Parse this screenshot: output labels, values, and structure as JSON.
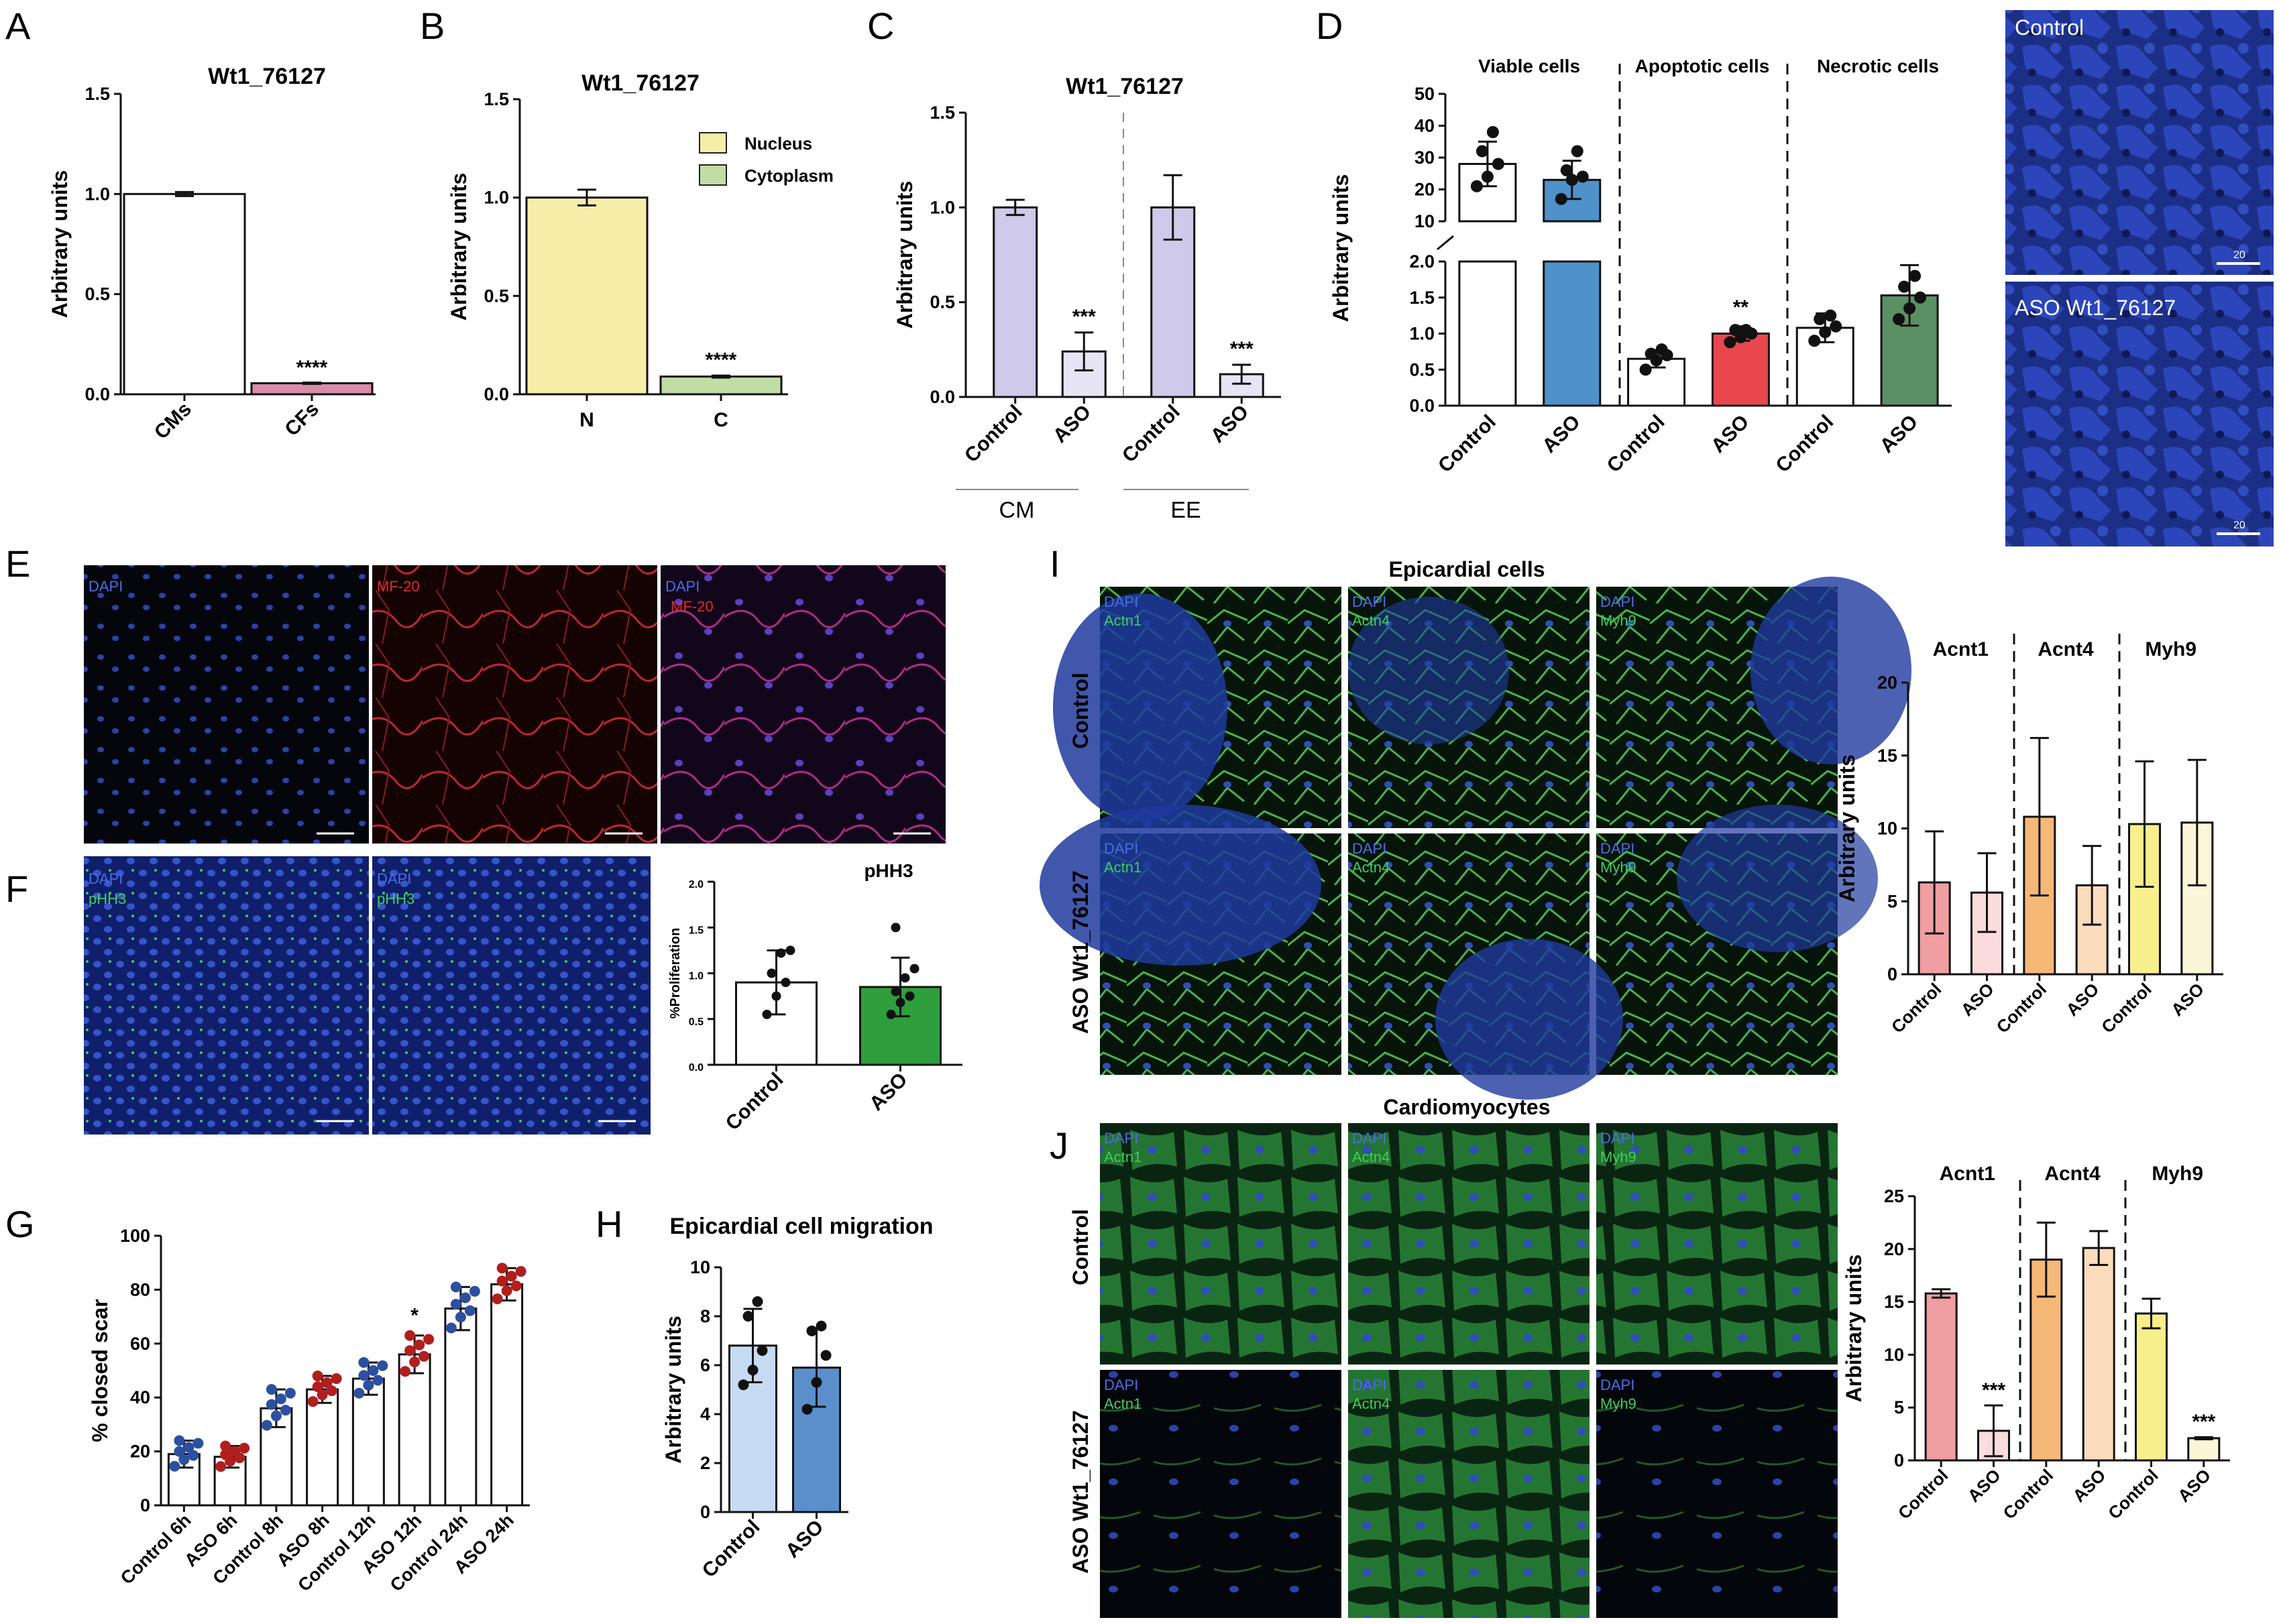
{
  "colors": {
    "cm": "#ffffff",
    "cf": "#d98ca8",
    "nucleus": "#f6eea8",
    "cytoplasm": "#c2dca6",
    "lav": "#cfc9ea",
    "lavlight": "#e7e4f5",
    "viable_aso": "#4f91ca",
    "apop_aso": "#e8474e",
    "necro_aso": "#5c8f64",
    "prolif_aso": "#2f9e3c",
    "blue": "#2d4fa0",
    "red": "#b11e1e",
    "mig_ctrl": "#c6dbf1",
    "mig_aso": "#5b8fcc",
    "acnt1_ctrl": "#ef9ea2",
    "acnt1_aso": "#fbdcdc",
    "acnt4_ctrl": "#f5b877",
    "acnt4_aso": "#fbdcbd",
    "myh9_ctrl": "#f7ef8c",
    "myh9_aso": "#fbf6d7"
  },
  "panels": {
    "A": {
      "letter": "A",
      "title": "Wt1_76127",
      "ylabel": "Arbitrary units",
      "categories": [
        "CMs",
        "CFs"
      ],
      "values": [
        1.0,
        0.055
      ],
      "errors": [
        0.01,
        0.003
      ],
      "yticks": [
        "0.0",
        "0.5",
        "1.0",
        "1.5"
      ],
      "sig": "****"
    },
    "B": {
      "letter": "B",
      "title": "Wt1_76127",
      "ylabel": "Arbitrary units",
      "categories": [
        "N",
        "C"
      ],
      "values": [
        1.0,
        0.09
      ],
      "errors": [
        0.04,
        0.005
      ],
      "yticks": [
        "0.0",
        "0.5",
        "1.0",
        "1.5"
      ],
      "sig": "****",
      "legend": [
        "Nucleus",
        "Cytoplasm"
      ]
    },
    "C": {
      "letter": "C",
      "title": "Wt1_76127",
      "ylabel": "Arbitrary units",
      "categories": [
        "Control",
        "ASO",
        "Control",
        "ASO"
      ],
      "groups": [
        "CM",
        "EE"
      ],
      "values": [
        1.0,
        0.24,
        1.0,
        0.12
      ],
      "errors": [
        0.04,
        0.1,
        0.17,
        0.05
      ],
      "yticks": [
        "0.0",
        "0.5",
        "1.0",
        "1.5"
      ],
      "sig": [
        "***",
        "***"
      ]
    },
    "D": {
      "letter": "D",
      "ylabel": "Arbitrary units",
      "groups": [
        "Viable cells",
        "Apoptotic cells",
        "Necrotic cells"
      ],
      "categories": [
        "Control",
        "ASO",
        "Control",
        "ASO",
        "Control",
        "ASO"
      ],
      "values": [
        28,
        23,
        0.65,
        1.0,
        1.08,
        1.53
      ],
      "errors": [
        7,
        6,
        0.12,
        0.1,
        0.2,
        0.42
      ],
      "points": [
        [
          21,
          24,
          28,
          32,
          38
        ],
        [
          17,
          23,
          24,
          26,
          32
        ],
        [
          0.5,
          0.63,
          0.7,
          0.72,
          0.78
        ],
        [
          0.88,
          0.95,
          1.0,
          1.05,
          1.05
        ],
        [
          0.9,
          1.02,
          1.1,
          1.2,
          1.25
        ],
        [
          1.2,
          1.35,
          1.5,
          1.65,
          1.8
        ]
      ],
      "upper_ticks": [
        "10",
        "20",
        "30",
        "40",
        "50"
      ],
      "lower_ticks": [
        "0.0",
        "0.5",
        "1.0",
        "1.5",
        "2.0"
      ],
      "sig": "**",
      "micro": [
        "Control",
        "ASO Wt1_76127"
      ],
      "scale": "20"
    },
    "E": {
      "letter": "E",
      "labels": [
        [
          "DAPI"
        ],
        [
          "MF-20"
        ],
        [
          "DAPI",
          "MF-20"
        ]
      ],
      "scale": "10"
    },
    "F": {
      "letter": "F",
      "labels": [
        [
          "DAPI",
          "pHH3"
        ],
        [
          "DAPI",
          "pHH3"
        ]
      ],
      "title": "pHH3",
      "ylabel": "%Proliferation",
      "categories": [
        "Control",
        "ASO"
      ],
      "values": [
        0.9,
        0.85
      ],
      "errors": [
        0.35,
        0.32
      ],
      "points": [
        [
          0.55,
          0.75,
          0.9,
          1.0,
          1.22,
          1.25
        ],
        [
          0.55,
          0.68,
          0.75,
          0.8,
          0.95,
          1.05,
          1.5
        ]
      ],
      "yticks": [
        "0.0",
        "0.5",
        "1.0",
        "1.5",
        "2.0"
      ],
      "scale": "10"
    },
    "G": {
      "letter": "G",
      "ylabel": "% closed scar",
      "categories": [
        "Control 6h",
        "ASO 6h",
        "Control 8h",
        "ASO 8h",
        "Control 12h",
        "ASO 12h",
        "Control 24h",
        "ASO 24h"
      ],
      "values": [
        19,
        18,
        36,
        43,
        47,
        56,
        73,
        82
      ],
      "errors": [
        5,
        4,
        7,
        5,
        6,
        7,
        8,
        6
      ],
      "yticks": [
        "0",
        "20",
        "40",
        "60",
        "80",
        "100"
      ],
      "sig": "*"
    },
    "H": {
      "letter": "H",
      "title": "Epicardial cell migration",
      "ylabel": "Arbitrary units",
      "categories": [
        "Control",
        "ASO"
      ],
      "values": [
        6.8,
        5.9
      ],
      "errors": [
        1.5,
        1.6
      ],
      "points": [
        [
          5.2,
          5.8,
          6.6,
          8.0,
          8.6
        ],
        [
          4.2,
          5.3,
          6.4,
          7.4,
          7.6
        ]
      ],
      "yticks": [
        "0",
        "2",
        "4",
        "6",
        "8",
        "10"
      ]
    },
    "I": {
      "letter": "I",
      "title": "Epicardial cells",
      "rows": [
        "Control",
        "ASO Wt1_76127"
      ],
      "labels": [
        [
          "DAPI",
          "Actn1"
        ],
        [
          "DAPI",
          "Actn4"
        ],
        [
          "DAPI",
          "Myh9"
        ]
      ],
      "scale": "10",
      "chart_groups": [
        "Acnt1",
        "Acnt4",
        "Myh9"
      ],
      "ylabel": "Arbitrary units",
      "categories": [
        "Control",
        "ASO",
        "Control",
        "ASO",
        "Control",
        "ASO"
      ],
      "values": [
        6.3,
        5.6,
        10.8,
        6.1,
        10.3,
        10.4
      ],
      "errors": [
        3.5,
        2.7,
        5.4,
        2.7,
        4.3,
        4.3
      ],
      "yticks": [
        "0",
        "5",
        "10",
        "15",
        "20"
      ]
    },
    "J": {
      "letter": "J",
      "title": "Cardiomyocytes",
      "rows": [
        "Control",
        "ASO Wt1_76127"
      ],
      "labels": [
        [
          "DAPI",
          "Actn1"
        ],
        [
          "DAPI",
          "Actn4"
        ],
        [
          "DAPI",
          "Myh9"
        ]
      ],
      "scale": "10",
      "chart_groups": [
        "Acnt1",
        "Acnt4",
        "Myh9"
      ],
      "ylabel": "Arbitrary units",
      "categories": [
        "Control",
        "ASO",
        "Control",
        "ASO",
        "Control",
        "ASO"
      ],
      "values": [
        15.8,
        2.8,
        19,
        20.1,
        13.9,
        2.1
      ],
      "errors": [
        0.4,
        2.4,
        3.5,
        1.6,
        1.4,
        0.1
      ],
      "yticks": [
        "0",
        "5",
        "10",
        "15",
        "20",
        "25"
      ],
      "sig": [
        "***",
        "***"
      ]
    }
  },
  "chart_data": [
    {
      "type": "bar",
      "title": "Wt1_76127",
      "categories": [
        "CMs",
        "CFs"
      ],
      "values": [
        1.0,
        0.055
      ],
      "ylabel": "Arbitrary units",
      "ylim": [
        0,
        1.5
      ]
    },
    {
      "type": "bar",
      "title": "Wt1_76127",
      "categories": [
        "N",
        "C"
      ],
      "values": [
        1.0,
        0.09
      ],
      "ylabel": "Arbitrary units",
      "ylim": [
        0,
        1.5
      ],
      "legend": [
        "Nucleus",
        "Cytoplasm"
      ]
    },
    {
      "type": "bar",
      "title": "Wt1_76127",
      "categories": [
        "Control",
        "ASO",
        "Control",
        "ASO"
      ],
      "groups": [
        "CM",
        "EE"
      ],
      "values": [
        1.0,
        0.24,
        1.0,
        0.12
      ],
      "ylabel": "Arbitrary units",
      "ylim": [
        0,
        1.5
      ]
    },
    {
      "type": "bar",
      "categories": [
        "Control",
        "ASO",
        "Control",
        "ASO",
        "Control",
        "ASO"
      ],
      "groups": [
        "Viable cells",
        "Apoptotic cells",
        "Necrotic cells"
      ],
      "values": [
        28,
        23,
        0.65,
        1.0,
        1.08,
        1.53
      ],
      "ylabel": "Arbitrary units"
    },
    {
      "type": "bar",
      "title": "pHH3",
      "categories": [
        "Control",
        "ASO"
      ],
      "values": [
        0.9,
        0.85
      ],
      "ylabel": "%Proliferation",
      "ylim": [
        0,
        2.0
      ]
    },
    {
      "type": "bar",
      "categories": [
        "Control 6h",
        "ASO 6h",
        "Control 8h",
        "ASO 8h",
        "Control 12h",
        "ASO 12h",
        "Control 24h",
        "ASO 24h"
      ],
      "values": [
        19,
        18,
        36,
        43,
        47,
        56,
        73,
        82
      ],
      "ylabel": "% closed scar",
      "ylim": [
        0,
        100
      ]
    },
    {
      "type": "bar",
      "title": "Epicardial cell migration",
      "categories": [
        "Control",
        "ASO"
      ],
      "values": [
        6.8,
        5.9
      ],
      "ylabel": "Arbitrary units",
      "ylim": [
        0,
        10
      ]
    },
    {
      "type": "bar",
      "categories": [
        "Control",
        "ASO",
        "Control",
        "ASO",
        "Control",
        "ASO"
      ],
      "groups": [
        "Acnt1",
        "Acnt4",
        "Myh9"
      ],
      "values": [
        6.3,
        5.6,
        10.8,
        6.1,
        10.3,
        10.4
      ],
      "ylabel": "Arbitrary units",
      "ylim": [
        0,
        20
      ]
    },
    {
      "type": "bar",
      "categories": [
        "Control",
        "ASO",
        "Control",
        "ASO",
        "Control",
        "ASO"
      ],
      "groups": [
        "Acnt1",
        "Acnt4",
        "Myh9"
      ],
      "values": [
        15.8,
        2.8,
        19,
        20.1,
        13.9,
        2.1
      ],
      "ylabel": "Arbitrary units",
      "ylim": [
        0,
        25
      ]
    }
  ]
}
